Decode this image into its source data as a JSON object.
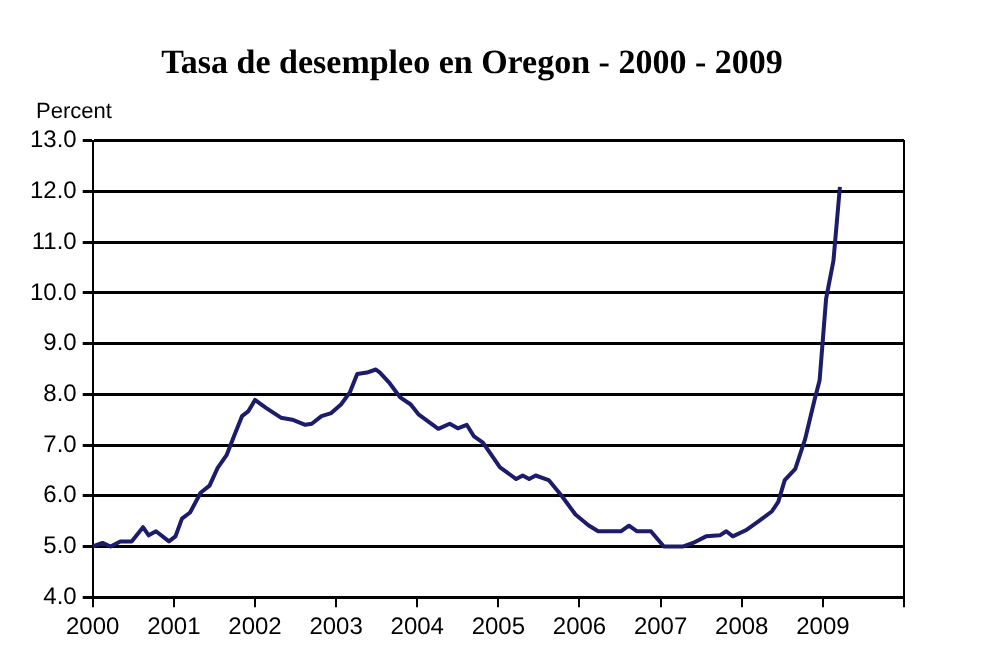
{
  "chart_data": {
    "type": "line",
    "title": "Tasa de desempleo en Oregon - 2000 - 2009",
    "ylabel": "Percent",
    "x": [
      2000.0,
      2000.12,
      2000.22,
      2000.34,
      2000.48,
      2000.62,
      2000.69,
      2000.78,
      2000.94,
      2001.02,
      2001.1,
      2001.2,
      2001.33,
      2001.44,
      2001.54,
      2001.65,
      2001.74,
      2001.84,
      2001.92,
      2002.0,
      2002.14,
      2002.32,
      2002.46,
      2002.62,
      2002.7,
      2002.82,
      2002.94,
      2003.06,
      2003.17,
      2003.26,
      2003.38,
      2003.49,
      2003.54,
      2003.66,
      2003.79,
      2003.92,
      2004.02,
      2004.26,
      2004.4,
      2004.5,
      2004.61,
      2004.7,
      2004.81,
      2005.02,
      2005.22,
      2005.3,
      2005.38,
      2005.46,
      2005.62,
      2005.78,
      2005.95,
      2006.11,
      2006.23,
      2006.51,
      2006.61,
      2006.71,
      2006.88,
      2007.04,
      2007.28,
      2007.4,
      2007.56,
      2007.73,
      2007.81,
      2007.89,
      2008.05,
      2008.21,
      2008.37,
      2008.45,
      2008.53,
      2008.66,
      2008.78,
      2008.9,
      2008.96,
      2009.04,
      2009.13,
      2009.21
    ],
    "series": [
      {
        "color": "#1c1c6b",
        "values": [
          5.0,
          5.07,
          5.0,
          5.1,
          5.1,
          5.38,
          5.22,
          5.3,
          5.1,
          5.2,
          5.55,
          5.67,
          6.06,
          6.2,
          6.55,
          6.8,
          7.17,
          7.57,
          7.67,
          7.89,
          7.73,
          7.54,
          7.5,
          7.4,
          7.42,
          7.57,
          7.63,
          7.8,
          8.04,
          8.4,
          8.43,
          8.49,
          8.43,
          8.22,
          7.94,
          7.8,
          7.6,
          7.32,
          7.42,
          7.33,
          7.4,
          7.17,
          7.05,
          6.56,
          6.33,
          6.4,
          6.33,
          6.4,
          6.31,
          6.0,
          5.63,
          5.42,
          5.3,
          5.3,
          5.41,
          5.3,
          5.3,
          5.0,
          5.0,
          5.07,
          5.2,
          5.22,
          5.3,
          5.2,
          5.32,
          5.5,
          5.69,
          5.88,
          6.31,
          6.53,
          7.11,
          7.91,
          8.28,
          9.89,
          10.63,
          12.09
        ]
      }
    ],
    "xlim": [
      2000,
      2010
    ],
    "xticks": [
      2000,
      2001,
      2002,
      2003,
      2004,
      2005,
      2006,
      2007,
      2008,
      2009,
      {
        "value": 2010,
        "label": null
      }
    ],
    "ylim": [
      4,
      13
    ],
    "yticks": [
      {
        "value": 4,
        "label": "4.0"
      },
      {
        "value": 5,
        "label": "5.0"
      },
      {
        "value": 6,
        "label": "6.0"
      },
      {
        "value": 7,
        "label": "7.0"
      },
      {
        "value": 8,
        "label": "8.0"
      },
      {
        "value": 9,
        "label": "9.0"
      },
      {
        "value": 10,
        "label": "10.0"
      },
      {
        "value": 11,
        "label": "11.0"
      },
      {
        "value": 12,
        "label": "12.0"
      },
      {
        "value": 13,
        "label": "13.0"
      }
    ],
    "grid": "y",
    "line_style": "solid",
    "marker": "none",
    "legend": false
  }
}
